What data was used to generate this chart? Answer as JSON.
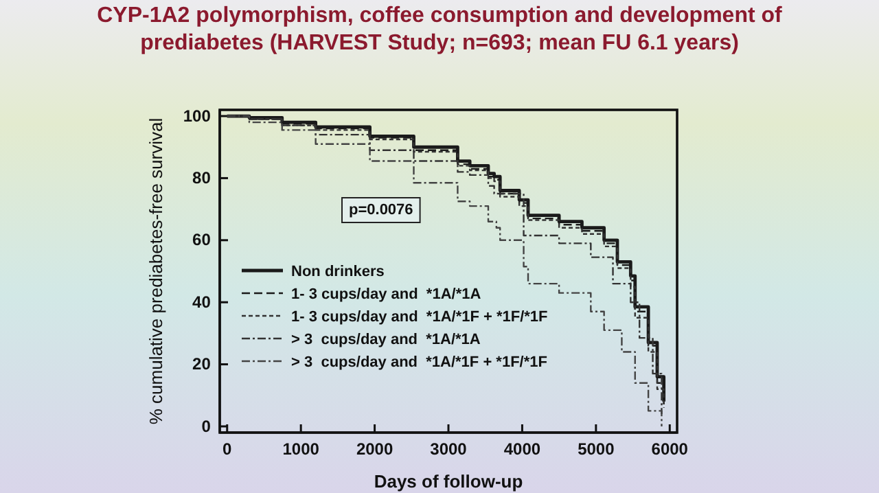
{
  "chart_data": {
    "type": "step",
    "title": "CYP-1A2 polymorphism, coffee consumption and development of\nprediabetes (HARVEST Study; n=693; mean FU 6.1 years)",
    "xlabel": "Days of follow-up",
    "ylabel": "% cumulative prediabetes-free survival",
    "xlim": [
      -100,
      6100
    ],
    "ylim": [
      -2,
      102
    ],
    "xticks": [
      0,
      1000,
      2000,
      3000,
      4000,
      5000,
      6000
    ],
    "yticks": [
      0,
      20,
      40,
      60,
      80,
      100
    ],
    "legend": "center left",
    "grid": false,
    "annotations": [
      "p=0.0076"
    ],
    "series": [
      {
        "name": "Non drinkers",
        "color": "#1a1a1a",
        "line_style": "solid",
        "x": [
          0,
          300,
          745,
          1200,
          1935,
          2530,
          3125,
          3290,
          3540,
          3620,
          3700,
          3960,
          4080,
          4500,
          4810,
          5110,
          5290,
          5470,
          5530,
          5710,
          5830,
          5920
        ],
        "values": [
          100,
          99.5,
          98,
          96.5,
          93.5,
          90,
          85.5,
          84,
          81.5,
          80.5,
          76,
          73,
          68,
          66,
          64,
          60,
          53,
          48.5,
          38.5,
          27,
          16,
          8
        ]
      },
      {
        "name": "1- 3 cups/day and  *1A/*1A",
        "color": "#1a1a1a",
        "line_style": "dashed",
        "x": [
          0,
          300,
          745,
          1200,
          1935,
          2530,
          3125,
          3290,
          3540,
          3620,
          3700,
          3960,
          4080,
          4500,
          4810,
          5110,
          5290,
          5470,
          5530,
          5710,
          5830,
          5920
        ],
        "values": [
          100,
          99,
          97.5,
          96,
          93,
          89,
          84.5,
          83,
          80.5,
          79.5,
          75,
          72,
          67,
          65,
          63,
          59,
          52,
          47,
          37,
          26,
          14,
          7
        ]
      },
      {
        "name": "1- 3 cups/day and  *1A/*1F + *1F/*1F",
        "color": "#333333",
        "line_style": "dotted",
        "x": [
          0,
          300,
          745,
          1200,
          1935,
          2530,
          3125,
          3290,
          3540,
          3620,
          3700,
          3960,
          4080,
          4500,
          4810,
          5110,
          5290,
          5470,
          5530,
          5710,
          5830,
          5920
        ],
        "values": [
          100,
          99,
          97,
          95.5,
          92.5,
          88.5,
          84,
          82.5,
          80,
          79,
          74,
          71,
          66.5,
          64,
          62,
          58,
          51,
          45,
          35,
          24,
          12,
          6
        ]
      },
      {
        "name": "> 3  cups/day and  *1A/*1A",
        "color": "#333333",
        "line_style": "dashdot",
        "x": [
          0,
          300,
          745,
          1200,
          1935,
          2530,
          3125,
          3290,
          3540,
          3620,
          4020,
          4500,
          4930,
          5230,
          5470,
          5590,
          5770,
          5890
        ],
        "values": [
          100,
          99,
          97,
          94,
          89,
          85.5,
          82,
          81,
          77.5,
          75,
          61.5,
          59,
          54.5,
          46,
          40,
          28.5,
          17,
          4
        ]
      },
      {
        "name": "> 3  cups/day and  *1A/*1F + *1F/*1F",
        "color": "#444444",
        "line_style": "dashdot",
        "x": [
          0,
          300,
          745,
          1200,
          1935,
          2530,
          3125,
          3290,
          3540,
          3650,
          3700,
          4020,
          4080,
          4500,
          4930,
          5110,
          5350,
          5530,
          5710,
          5890
        ],
        "values": [
          100,
          98,
          95.5,
          91,
          85.5,
          78.5,
          72.5,
          71,
          66,
          64,
          60,
          51.5,
          46,
          43,
          37,
          31,
          24,
          14,
          5,
          0
        ]
      }
    ]
  }
}
